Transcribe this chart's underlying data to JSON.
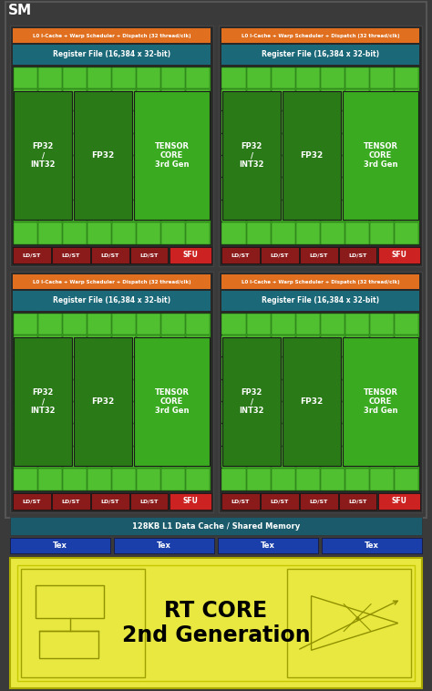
{
  "bg_color": "#3a3a3a",
  "sm_label": "SM",
  "orange_color": "#e07020",
  "teal_color": "#1a6878",
  "green_dark": "#2a7a18",
  "green_mid": "#3aaa20",
  "green_bright": "#50c030",
  "red_dark": "#8b1a1a",
  "red_bright": "#cc2222",
  "blue_color": "#1a3faa",
  "yellow_color": "#e8e840",
  "white": "#ffffff",
  "black": "#000000",
  "dark_border": "#222222",
  "l0_text": "L0 I-Cache + Warp Scheduler + Dispatch (32 thread/clk)",
  "reg_text": "Register File (16,384 x 32-bit)",
  "fp32_int32_text": "FP32\n/\nINT32",
  "fp32_text": "FP32",
  "tensor_text": "TENSOR\nCORE\n3rd Gen",
  "ldst_text": "LD/ST",
  "sfu_text": "SFU",
  "l1_text": "128KB L1 Data Cache / Shared Memory",
  "tex_text": "Tex",
  "rtcore_text": "RT CORE\n2nd Generation"
}
